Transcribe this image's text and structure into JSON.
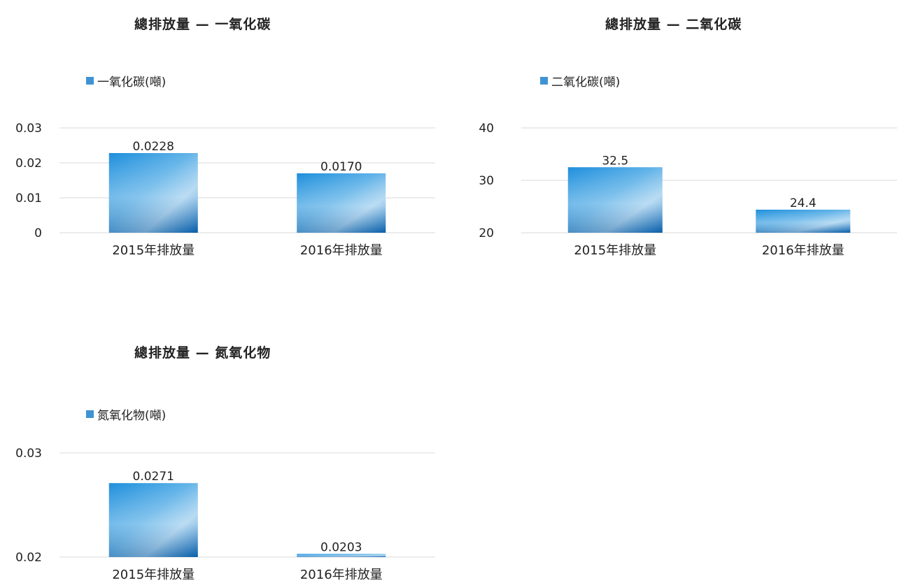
{
  "chart_data": [
    {
      "type": "bar",
      "title": "總排放量 — 一氧化碳",
      "categories": [
        "2015年排放量",
        "2016年排放量"
      ],
      "series": [
        {
          "name": "一氧化碳(噸)",
          "values": [
            0.0228,
            0.017
          ]
        }
      ],
      "data_labels": [
        "0.0228",
        "0.0170"
      ],
      "yticks": [
        "0",
        "0.01",
        "0.02",
        "0.03"
      ],
      "ylim": [
        0,
        0.03
      ],
      "legend_position": "top-left",
      "grid": true
    },
    {
      "type": "bar",
      "title": "總排放量 — 二氧化碳",
      "categories": [
        "2015年排放量",
        "2016年排放量"
      ],
      "series": [
        {
          "name": "二氧化碳(噸)",
          "values": [
            32.5,
            24.4
          ]
        }
      ],
      "data_labels": [
        "32.5",
        "24.4"
      ],
      "yticks": [
        "20",
        "30",
        "40"
      ],
      "ylim": [
        20,
        40
      ],
      "legend_position": "top-left",
      "grid": true
    },
    {
      "type": "bar",
      "title": "總排放量 — 氮氧化物",
      "categories": [
        "2015年排放量",
        "2016年排放量"
      ],
      "series": [
        {
          "name": "氮氧化物(噸)",
          "values": [
            0.0271,
            0.0203
          ]
        }
      ],
      "data_labels": [
        "0.0271",
        "0.0203"
      ],
      "yticks": [
        "0.02",
        "0.03"
      ],
      "ylim": [
        0.02,
        0.03
      ],
      "legend_position": "top-left",
      "grid": true
    }
  ],
  "colors": {
    "bar_dark": "#0a6fc0",
    "bar_mid": "#1e8fdc",
    "bar_light": "#a6d2f0",
    "legend": "#3f93d4",
    "grid": "#d9d9d9"
  }
}
